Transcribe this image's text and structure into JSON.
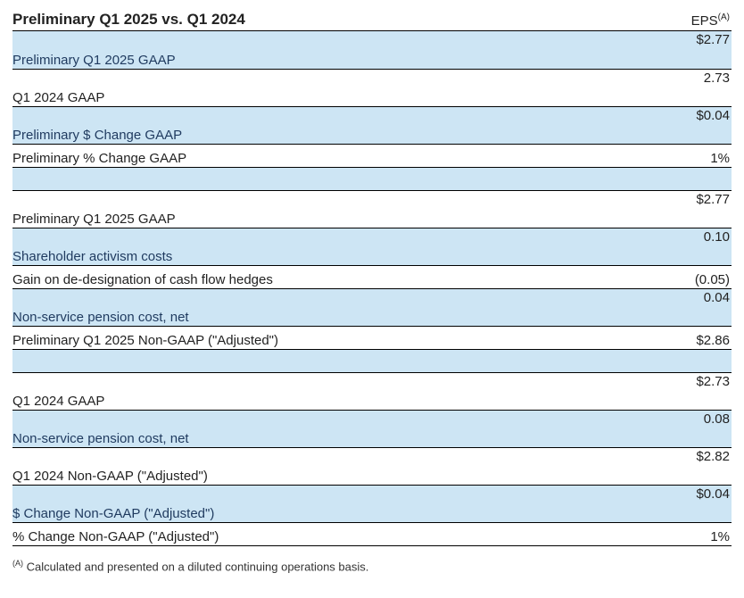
{
  "header": {
    "title": "Preliminary Q1 2025 vs. Q1 2024",
    "eps_label": "EPS",
    "eps_sup": "(A)"
  },
  "rows": {
    "r1": {
      "label": "Preliminary Q1 2025 GAAP",
      "value": "$2.77"
    },
    "r2": {
      "label": "Q1 2024 GAAP",
      "value": "2.73"
    },
    "r3": {
      "label": "Preliminary $ Change GAAP",
      "value": "$0.04"
    },
    "r4": {
      "label": "Preliminary % Change GAAP",
      "value": "1%"
    },
    "r5": {
      "label": "Preliminary Q1 2025 GAAP",
      "value": "$2.77"
    },
    "r6": {
      "label": "Shareholder activism costs",
      "value": "0.10"
    },
    "r7": {
      "label": "Gain on de-designation of cash flow hedges",
      "value": "(0.05)"
    },
    "r8": {
      "label": "Non-service pension cost, net",
      "value": "0.04"
    },
    "r9": {
      "label": "Preliminary Q1 2025 Non-GAAP (\"Adjusted\")",
      "value": "$2.86"
    },
    "r10": {
      "label": "Q1 2024 GAAP",
      "value": "$2.73"
    },
    "r11": {
      "label": "Non-service pension cost, net",
      "value": "0.08"
    },
    "r12": {
      "label": "Q1 2024 Non-GAAP (\"Adjusted\")",
      "value": "$2.82"
    },
    "r13": {
      "label": "$ Change Non-GAAP (\"Adjusted\")",
      "value": "$0.04"
    },
    "r14": {
      "label": "% Change Non-GAAP (\"Adjusted\")",
      "value": "1%"
    }
  },
  "footnote": {
    "sup": "(A)",
    "text": " Calculated and presented on a diluted continuing operations basis."
  },
  "colors": {
    "shade": "#cde5f4",
    "text_blue": "#1f3a5f",
    "border": "#000000",
    "background": "#ffffff"
  }
}
